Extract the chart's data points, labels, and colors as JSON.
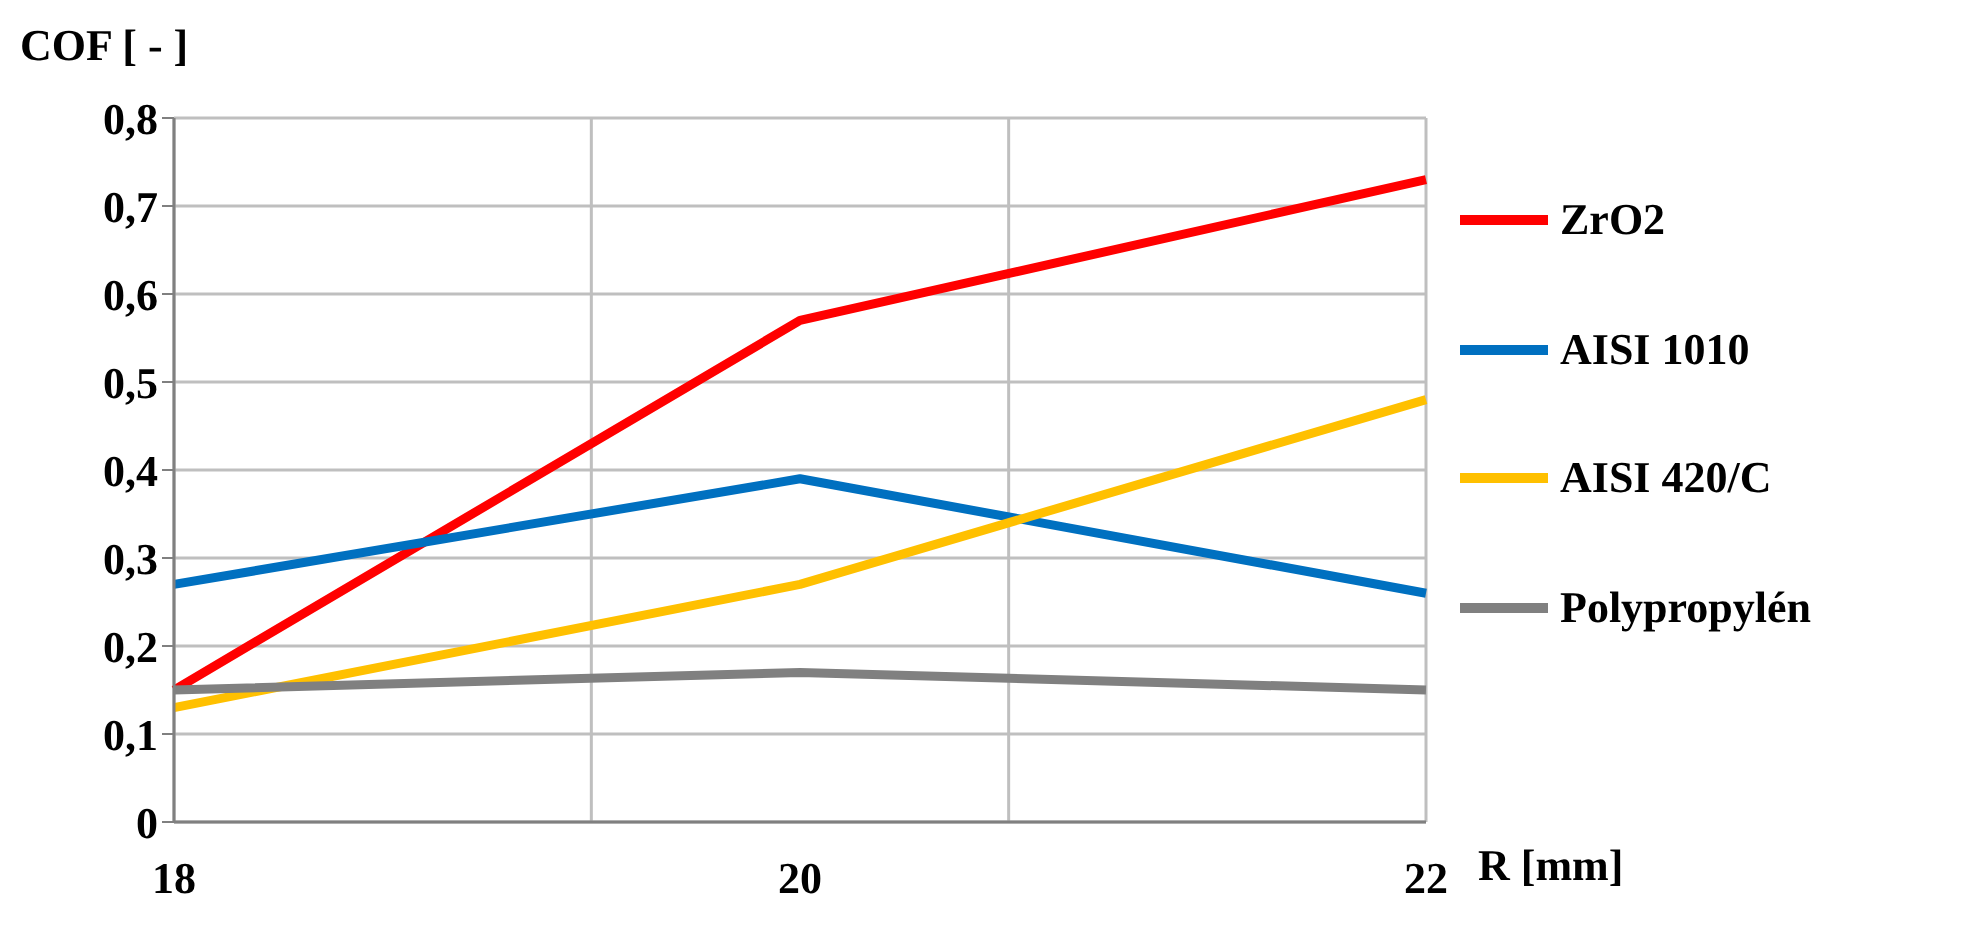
{
  "chart_data": {
    "type": "line",
    "ylabel": "COF [ - ]",
    "xlabel": "R [mm]",
    "categories": [
      "18",
      "20",
      "22"
    ],
    "series": [
      {
        "name": "ZrO2",
        "color": "#ff0000",
        "values": [
          0.15,
          0.57,
          0.73
        ]
      },
      {
        "name": "AISI 1010",
        "color": "#0070c0",
        "values": [
          0.27,
          0.39,
          0.26
        ]
      },
      {
        "name": "AISI 420/C",
        "color": "#ffc000",
        "values": [
          0.13,
          0.27,
          0.48
        ]
      },
      {
        "name": "Polypropylén",
        "color": "#808080",
        "values": [
          0.15,
          0.17,
          0.15
        ]
      }
    ],
    "ylim": [
      0,
      0.8
    ],
    "yticks": [
      0,
      {
        "value": 0.1,
        "label": "0,1"
      },
      {
        "value": 0.2,
        "label": "0,2"
      },
      {
        "value": 0.3,
        "label": "0,3"
      },
      {
        "value": 0.4,
        "label": "0,4"
      },
      {
        "value": 0.5,
        "label": "0,5"
      },
      {
        "value": 0.6,
        "label": "0,6"
      },
      {
        "value": 0.7,
        "label": "0,7"
      },
      {
        "value": 0.8,
        "label": "0,8"
      }
    ],
    "grid": true,
    "legend": "right",
    "marker": "none",
    "line_style": "solid"
  }
}
